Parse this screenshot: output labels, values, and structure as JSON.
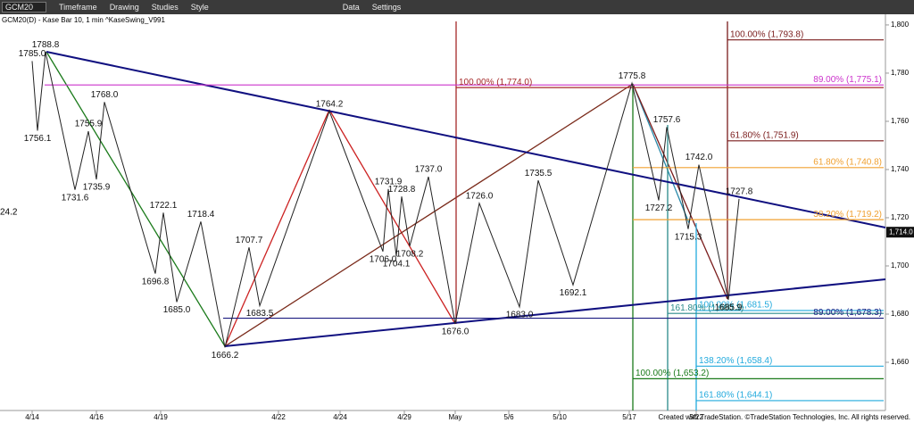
{
  "toolbar": {
    "symbol": "GCM20",
    "items": [
      "Timeframe",
      "Drawing",
      "Studies",
      "Style",
      "Data",
      "Settings"
    ]
  },
  "chart_data": {
    "type": "line",
    "title": "GCM20(D) - Kase Bar 10, 1 min  ^KaseSwing_V991",
    "footer": "Created with TradeStation. ©TradeStation Technologies, Inc. All rights reserved.",
    "xlim": [
      0,
      330
    ],
    "ylim": [
      1640,
      1802.2
    ],
    "xticks": [
      {
        "value": 12,
        "label": "4/14"
      },
      {
        "value": 36,
        "label": "4/16"
      },
      {
        "value": 60,
        "label": "4/19"
      },
      {
        "value": 104,
        "label": "4/22"
      },
      {
        "value": 127,
        "label": "4/24"
      },
      {
        "value": 151,
        "label": "4/29"
      },
      {
        "value": 170,
        "label": "May"
      },
      {
        "value": 190,
        "label": "5/6"
      },
      {
        "value": 209,
        "label": "5/10"
      },
      {
        "value": 235,
        "label": "5/17"
      },
      {
        "value": 260,
        "label": "5/22"
      }
    ],
    "yticks": [
      {
        "value": 1660,
        "label": "1,660"
      },
      {
        "value": 1680,
        "label": "1,680"
      },
      {
        "value": 1700,
        "label": "1,700"
      },
      {
        "value": 1720,
        "label": "1,720"
      },
      {
        "value": 1740,
        "label": "1,740"
      },
      {
        "value": 1760,
        "label": "1,760"
      },
      {
        "value": 1780,
        "label": "1,780"
      },
      {
        "value": 1800,
        "label": "1,800"
      }
    ],
    "series": [
      {
        "name": "KaseSwing",
        "color": "#222222",
        "x": [
          12,
          14,
          17,
          28,
          33,
          36,
          39,
          58,
          61,
          66,
          75,
          84,
          93,
          97,
          123,
          143,
          145,
          148,
          150,
          153,
          160,
          170,
          179,
          194,
          201,
          214,
          236,
          246,
          249,
          257,
          261,
          272,
          276
        ],
        "values": [
          1785.0,
          1756.1,
          1788.8,
          1731.6,
          1755.9,
          1735.9,
          1768.0,
          1696.8,
          1722.1,
          1685.0,
          1718.4,
          1666.2,
          1707.7,
          1683.5,
          1764.2,
          1706.0,
          1731.9,
          1704.1,
          1728.8,
          1708.2,
          1737.0,
          1676.0,
          1726.0,
          1683.0,
          1735.5,
          1692.1,
          1775.8,
          1727.2,
          1757.6,
          1715.3,
          1742.0,
          1685.9,
          1727.8
        ],
        "value_labels": [
          "1785.0",
          "1756.1",
          "1788.8",
          "1731.6",
          "1755.9",
          "1735.9",
          "1768.0",
          "1696.8",
          "1722.1",
          "1685.0",
          "1718.4",
          "1666.2",
          "1707.7",
          "1683.5",
          "1764.2",
          "1706.0",
          "1731.9",
          "1704.1",
          "1728.8",
          "1708.2",
          "1737.0",
          "1676.0",
          "1726.0",
          "1683.0",
          "1735.5",
          "1692.1",
          "1775.8",
          "1727.2",
          "1757.6",
          "1715.3",
          "1742.0",
          "1685.9",
          "1727.8"
        ]
      }
    ],
    "clipped_label": "24.2",
    "last_price": {
      "value": 1714.0,
      "label": "1,714.0"
    },
    "fib_levels": [
      {
        "label": "100.00% (1,793.8)",
        "value": 1793.8,
        "color": "#7a1c1c"
      },
      {
        "label": "89.00% (1,775.1)",
        "value": 1775.1,
        "color": "#cc33cc"
      },
      {
        "label": "100.00% (1,774.0)",
        "value": 1774.0,
        "color": "#a52a2a"
      },
      {
        "label": "61.80% (1,751.9)",
        "value": 1751.9,
        "color": "#7a1c1c"
      },
      {
        "label": "61.80% (1,740.8)",
        "value": 1740.8,
        "color": "#f0a030"
      },
      {
        "label": "38.20% (1,719.2)",
        "value": 1719.2,
        "color": "#f0a030"
      },
      {
        "label": "100.00% (1,681.5)",
        "value": 1681.5,
        "color": "#22aadd"
      },
      {
        "label": "161.80% (1,680.3)",
        "value": 1680.3,
        "color": "#2a8a8a"
      },
      {
        "label": "89.00% (1,678.3)",
        "value": 1678.3,
        "color": "#1a1a80"
      },
      {
        "label": "138.20% (1,658.4)",
        "value": 1658.4,
        "color": "#22aadd"
      },
      {
        "label": "100.00% (1,653.2)",
        "value": 1653.2,
        "color": "#1a7a1a"
      },
      {
        "label": "161.80% (1,644.1)",
        "value": 1644.1,
        "color": "#22aadd"
      }
    ]
  }
}
